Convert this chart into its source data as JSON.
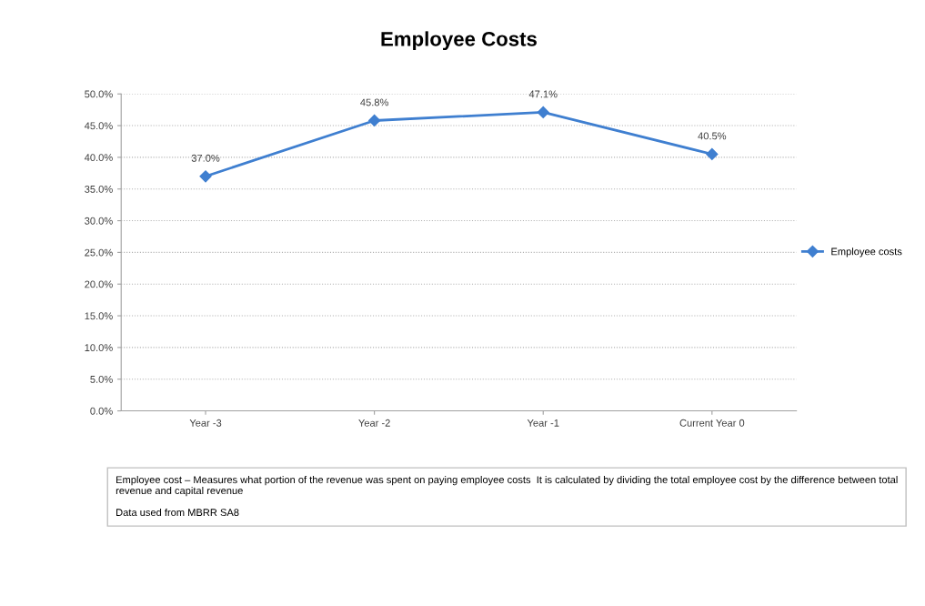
{
  "chart_data": {
    "type": "line",
    "title": "Employee Costs",
    "categories": [
      "Year -3",
      "Year -2",
      "Year -1",
      "Current Year 0"
    ],
    "series": [
      {
        "name": "Employee costs",
        "color": "#3f7fd0",
        "values": [
          37.0,
          45.8,
          47.1,
          40.5
        ],
        "value_labels": [
          "37.0%",
          "45.8%",
          "47.1%",
          "40.5%"
        ]
      }
    ],
    "ylim": [
      0,
      50
    ],
    "yticks": [
      {
        "value": 0,
        "label": "0.0%"
      },
      {
        "value": 5,
        "label": "5.0%"
      },
      {
        "value": 10,
        "label": "10.0%"
      },
      {
        "value": 15,
        "label": "15.0%"
      },
      {
        "value": 20,
        "label": "20.0%"
      },
      {
        "value": 25,
        "label": "25.0%"
      },
      {
        "value": 30,
        "label": "30.0%"
      },
      {
        "value": 35,
        "label": "35.0%"
      },
      {
        "value": 40,
        "label": "40.0%"
      },
      {
        "value": 45,
        "label": "45.0%"
      },
      {
        "value": 50,
        "label": "50.0%"
      }
    ],
    "grid": "y",
    "legend": "right",
    "marker": "diamond",
    "line_style": "solid",
    "annotations": [
      "Employee cost – Measures what portion of the revenue was spent on paying employee costs  It is calculated by dividing the total employee cost by the difference between total revenue and capital revenue\n\nData used from MBRR SA8"
    ]
  }
}
